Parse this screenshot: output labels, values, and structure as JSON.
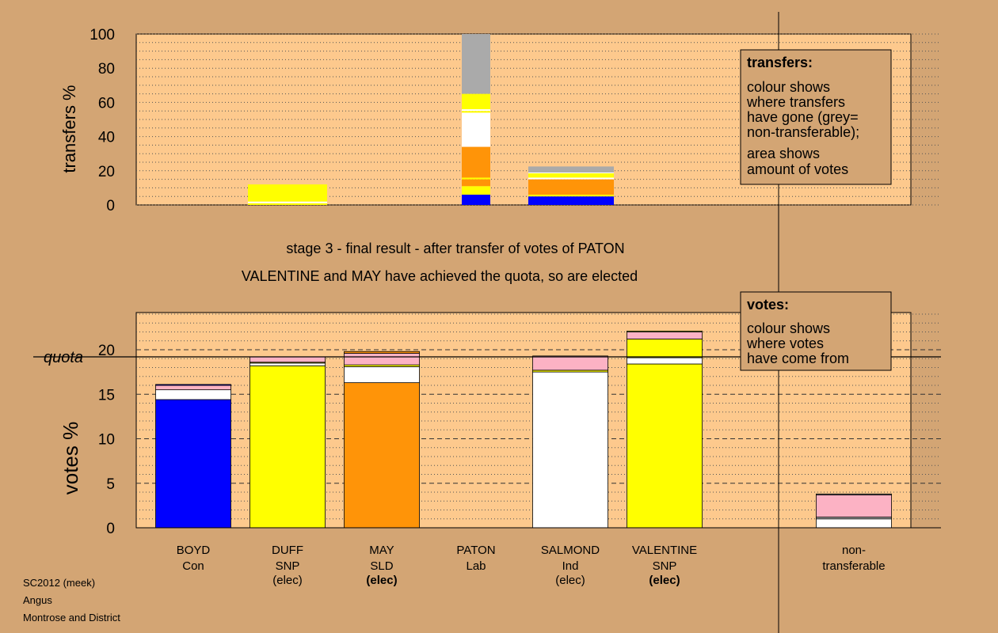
{
  "colors": {
    "background": "#d3a574",
    "plot_bg": "#fdc98d",
    "Con": "#0000ff",
    "SNP": "#ffff00",
    "SLD": "#ff9408",
    "Ind": "#ffffff",
    "Lab": "#ffffff",
    "transfer_pink": "#fcb2c4",
    "non_transferable": "#aaaaaa"
  },
  "titles": {
    "stage": "stage 3 - final result - after transfer of votes of PATON",
    "result": "VALENTINE and MAY have achieved the quota, so are elected"
  },
  "legends": {
    "transfers": {
      "heading": "transfers:",
      "lines1": [
        "colour shows",
        "where transfers",
        "have gone (grey=",
        "non-transferable);"
      ],
      "lines2": [
        "area shows",
        "amount of votes"
      ]
    },
    "votes": {
      "heading": "votes:",
      "lines1": [
        "colour shows",
        "where votes",
        "have come from"
      ]
    }
  },
  "footer": {
    "line1": "SC2012 (meek)",
    "line2": "Angus",
    "line3": "Montrose and District"
  },
  "chart_data": [
    {
      "type": "bar",
      "stacked": true,
      "ylabel": "transfers %",
      "ylim": [
        0,
        100
      ],
      "yticks": [
        0,
        20,
        40,
        60,
        80,
        100
      ],
      "grid": "dotted",
      "categories": [
        "BOYD",
        "DUFF",
        "MAY",
        "PATON",
        "SALMOND",
        "VALENTINE",
        "non-transferable"
      ],
      "bars": [
        {
          "category": "DUFF",
          "segments": [
            {
              "color": "#ffff00",
              "from": 0,
              "to": 1
            },
            {
              "color": "#ffffff",
              "from": 1,
              "to": 2
            },
            {
              "color": "#ffff00",
              "from": 2,
              "to": 12
            }
          ]
        },
        {
          "category": "PATON",
          "segments": [
            {
              "color": "#0000ff",
              "from": 0,
              "to": 6
            },
            {
              "color": "#ffff00",
              "from": 6,
              "to": 11
            },
            {
              "color": "#ff9408",
              "from": 11,
              "to": 15
            },
            {
              "color": "#ffff00",
              "from": 15,
              "to": 16
            },
            {
              "color": "#ff9408",
              "from": 16,
              "to": 34
            },
            {
              "color": "#ffffff",
              "from": 34,
              "to": 54
            },
            {
              "color": "#ffff00",
              "from": 54,
              "to": 55
            },
            {
              "color": "#ffffff",
              "from": 55,
              "to": 56
            },
            {
              "color": "#ffff00",
              "from": 56,
              "to": 65
            },
            {
              "color": "#aaaaaa",
              "from": 65,
              "to": 100
            }
          ]
        },
        {
          "category": "SALMOND",
          "segments": [
            {
              "color": "#0000ff",
              "from": 0,
              "to": 5
            },
            {
              "color": "#ffff00",
              "from": 5,
              "to": 6
            },
            {
              "color": "#ff9408",
              "from": 6,
              "to": 15
            },
            {
              "color": "#ffffff",
              "from": 15,
              "to": 16
            },
            {
              "color": "#ffff00",
              "from": 16,
              "to": 18.5
            },
            {
              "color": "#ffffff",
              "from": 18.5,
              "to": 19
            },
            {
              "color": "#aaaaaa",
              "from": 19,
              "to": 22.5
            }
          ]
        }
      ]
    },
    {
      "type": "bar",
      "stacked": true,
      "ylabel": "votes %",
      "ylim": [
        0,
        25
      ],
      "yticks": [
        0,
        5,
        10,
        15,
        20
      ],
      "quota": 19.2,
      "quota_label": "quota",
      "grid": "dashed",
      "candidates": [
        {
          "name": "BOYD",
          "party": "Con",
          "status": "",
          "segments": [
            {
              "color": "#0000ff",
              "from": 0,
              "to": 14.4
            },
            {
              "color": "#ffffff",
              "from": 14.4,
              "to": 15.5
            },
            {
              "color": "#fcb2c4",
              "from": 15.5,
              "to": 16.0
            },
            {
              "color": "#0000ff",
              "from": 16.0,
              "to": 16.1
            }
          ]
        },
        {
          "name": "DUFF",
          "party": "SNP",
          "status": "(elec)",
          "segments": [
            {
              "color": "#ffff00",
              "from": 0,
              "to": 18.2
            },
            {
              "color": "#ffffff",
              "from": 18.2,
              "to": 18.5
            },
            {
              "color": "#ffff00",
              "from": 18.5,
              "to": 18.6
            },
            {
              "color": "#fcb2c4",
              "from": 18.6,
              "to": 19.2
            }
          ]
        },
        {
          "name": "MAY",
          "party": "SLD",
          "status": "(elec)",
          "segments": [
            {
              "color": "#ff9408",
              "from": 0,
              "to": 16.3
            },
            {
              "color": "#ffffff",
              "from": 16.3,
              "to": 18.1
            },
            {
              "color": "#ffff00",
              "from": 18.1,
              "to": 18.3
            },
            {
              "color": "#fcb2c4",
              "from": 18.3,
              "to": 19.6
            },
            {
              "color": "#ff9408",
              "from": 19.6,
              "to": 19.8
            }
          ]
        },
        {
          "name": "PATON",
          "party": "Lab",
          "status": "",
          "segments": []
        },
        {
          "name": "SALMOND",
          "party": "Ind",
          "status": "(elec)",
          "segments": [
            {
              "color": "#ffffff",
              "from": 0,
              "to": 17.5
            },
            {
              "color": "#ffff00",
              "from": 17.5,
              "to": 17.7
            },
            {
              "color": "#fcb2c4",
              "from": 17.7,
              "to": 19.3
            }
          ]
        },
        {
          "name": "VALENTINE",
          "party": "SNP",
          "status": "(elec)",
          "segments": [
            {
              "color": "#ffff00",
              "from": 0,
              "to": 18.4
            },
            {
              "color": "#ffffff",
              "from": 18.4,
              "to": 19.1
            },
            {
              "color": "#ffff00",
              "from": 19.1,
              "to": 21.2
            },
            {
              "color": "#fcb2c4",
              "from": 21.2,
              "to": 22.0
            },
            {
              "color": "#ffff00",
              "from": 22.0,
              "to": 22.1
            }
          ]
        },
        {
          "name": "non-",
          "party": "transferable",
          "status": "",
          "segments": [
            {
              "color": "#ffffff",
              "from": 0,
              "to": 1.0
            },
            {
              "color": "#aaaaaa",
              "from": 1.0,
              "to": 1.2
            },
            {
              "color": "#fcb2c4",
              "from": 1.2,
              "to": 3.7
            },
            {
              "color": "#aaaaaa",
              "from": 3.7,
              "to": 3.8
            }
          ]
        }
      ]
    }
  ]
}
